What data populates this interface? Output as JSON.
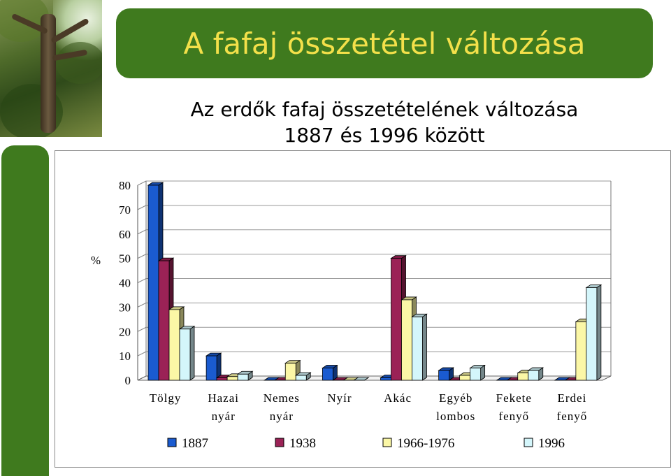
{
  "header": {
    "title": "A fafaj összetétel változása"
  },
  "chart_data": {
    "type": "bar",
    "title_lines": [
      "Az erdők fafaj összetételének változása",
      "1887 és 1996 között"
    ],
    "ylabel": "%",
    "ylim": [
      0,
      80
    ],
    "yticks": [
      0,
      10,
      20,
      30,
      40,
      50,
      60,
      70,
      80
    ],
    "grid": true,
    "legend_position": "bottom",
    "categories": [
      [
        "Tölgy"
      ],
      [
        "Hazai",
        "nyár"
      ],
      [
        "Nemes",
        "nyár"
      ],
      [
        "Nyír"
      ],
      [
        "Akác"
      ],
      [
        "Egyéb",
        "lombos"
      ],
      [
        "Fekete",
        "fenyő"
      ],
      [
        "Erdei",
        "fenyő"
      ]
    ],
    "series": [
      {
        "name": "1887",
        "color": "#1a5bd0",
        "values": [
          80,
          10,
          0,
          5,
          1,
          4,
          0,
          0
        ]
      },
      {
        "name": "1938",
        "color": "#9b2256",
        "values": [
          49,
          1,
          0,
          0,
          50,
          0,
          0,
          0
        ]
      },
      {
        "name": "1966-1976",
        "color": "#fbf7a6",
        "values": [
          29,
          1.5,
          7,
          0,
          33,
          2,
          3,
          24
        ]
      },
      {
        "name": "1996",
        "color": "#d4f6fb",
        "values": [
          21,
          2.5,
          2,
          0,
          26,
          5,
          4,
          38
        ]
      }
    ]
  }
}
